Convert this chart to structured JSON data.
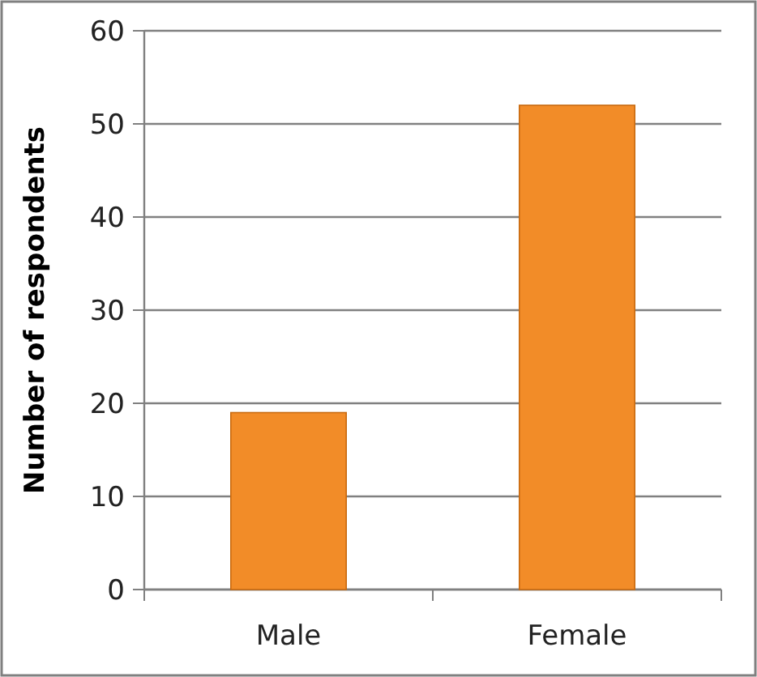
{
  "chart_data": {
    "type": "bar",
    "ylabel": "Number of respondents",
    "categories": [
      "Male",
      "Female"
    ],
    "values": [
      19,
      52
    ],
    "color": "#f28c28",
    "ylim": [
      0,
      60
    ],
    "yticks": [
      0,
      10,
      20,
      30,
      40,
      50,
      60
    ],
    "grid": "y"
  }
}
